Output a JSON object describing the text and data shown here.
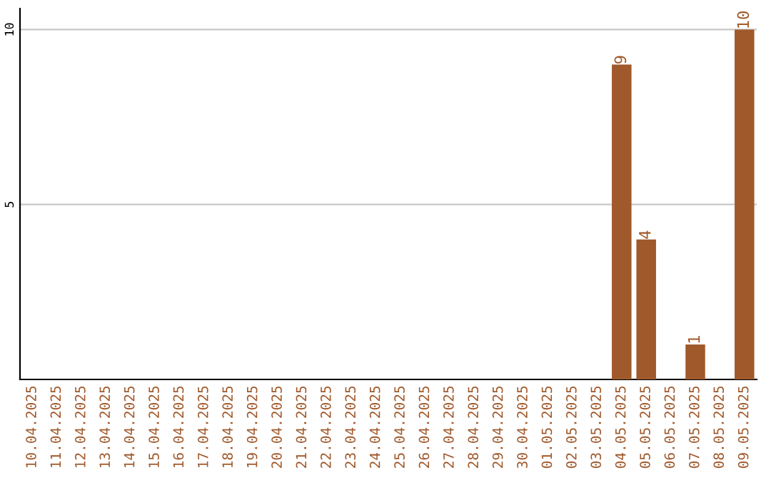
{
  "chart_data": {
    "type": "bar",
    "categories": [
      "10.04.2025",
      "11.04.2025",
      "12.04.2025",
      "13.04.2025",
      "14.04.2025",
      "15.04.2025",
      "16.04.2025",
      "17.04.2025",
      "18.04.2025",
      "19.04.2025",
      "20.04.2025",
      "21.04.2025",
      "22.04.2025",
      "23.04.2025",
      "24.04.2025",
      "25.04.2025",
      "26.04.2025",
      "27.04.2025",
      "28.04.2025",
      "29.04.2025",
      "30.04.2025",
      "01.05.2025",
      "02.05.2025",
      "03.05.2025",
      "04.05.2025",
      "05.05.2025",
      "06.05.2025",
      "07.05.2025",
      "08.05.2025",
      "09.05.2025"
    ],
    "values": [
      null,
      null,
      null,
      null,
      null,
      null,
      null,
      null,
      null,
      null,
      null,
      null,
      null,
      null,
      null,
      null,
      null,
      null,
      null,
      null,
      null,
      null,
      null,
      null,
      9,
      4,
      null,
      1,
      null,
      10
    ],
    "color": "#a0592b",
    "ylim": [
      0,
      10.6
    ],
    "yticks": [
      5,
      10
    ],
    "grid": "y",
    "data_labels": true
  }
}
